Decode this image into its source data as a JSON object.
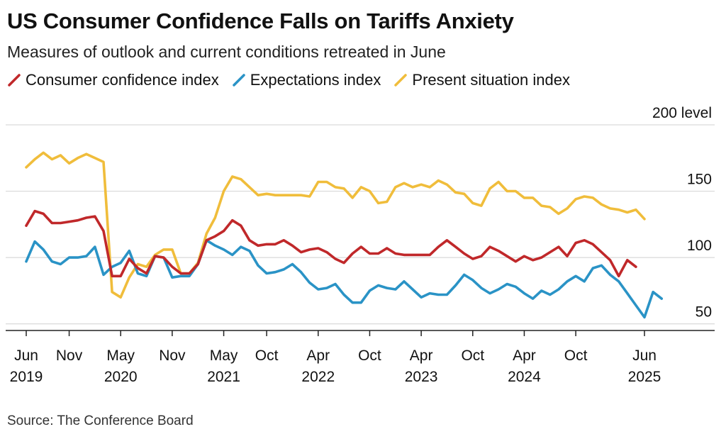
{
  "title": "US Consumer Confidence Falls on Tariffs Anxiety",
  "subtitle": "Measures of outlook and current conditions retreated in June",
  "source": "Source: The Conference Board",
  "chart_data": {
    "type": "line",
    "title": "US Consumer Confidence Falls on Tariffs Anxiety",
    "subtitle": "Measures of outlook and current conditions retreated in June",
    "ylabel": "200 level",
    "ylim": [
      45,
      200
    ],
    "xlim": [
      "2019-06",
      "2025-07"
    ],
    "y_axis_position": "right",
    "grid": true,
    "legend_position": "top-left",
    "y_ticks": [
      {
        "value": 200,
        "label": "200 level"
      },
      {
        "value": 150,
        "label": "150"
      },
      {
        "value": 100,
        "label": "100"
      },
      {
        "value": 50,
        "label": "50"
      }
    ],
    "x_ticks": [
      {
        "x": "2019-06",
        "label": "Jun",
        "year": "2019"
      },
      {
        "x": "2019-11",
        "label": "Nov",
        "year": ""
      },
      {
        "x": "2020-05",
        "label": "May",
        "year": "2020"
      },
      {
        "x": "2020-11",
        "label": "Nov",
        "year": ""
      },
      {
        "x": "2021-05",
        "label": "May",
        "year": "2021"
      },
      {
        "x": "2021-10",
        "label": "Oct",
        "year": ""
      },
      {
        "x": "2022-04",
        "label": "Apr",
        "year": "2022"
      },
      {
        "x": "2022-10",
        "label": "Oct",
        "year": ""
      },
      {
        "x": "2023-04",
        "label": "Apr",
        "year": "2023"
      },
      {
        "x": "2023-10",
        "label": "Oct",
        "year": ""
      },
      {
        "x": "2024-04",
        "label": "Apr",
        "year": "2024"
      },
      {
        "x": "2024-10",
        "label": "Oct",
        "year": ""
      },
      {
        "x": "2025-06",
        "label": "Jun",
        "year": "2025"
      }
    ],
    "series": [
      {
        "name": "Consumer confidence index",
        "color": "#c0282a",
        "start": "2019-06",
        "values": [
          124,
          135,
          133,
          126,
          126,
          127,
          128,
          130,
          131,
          120,
          86,
          86,
          99,
          92,
          88,
          101,
          100,
          93,
          88,
          88,
          95,
          113,
          116,
          120,
          128,
          124,
          113,
          109,
          110,
          110,
          113,
          109,
          104,
          106,
          107,
          104,
          99,
          96,
          103,
          108,
          103,
          103,
          107,
          103,
          102,
          102,
          102,
          102,
          108,
          113,
          108,
          103,
          99,
          101,
          108,
          105,
          101,
          97,
          101,
          98,
          100,
          104,
          108,
          101,
          111,
          113,
          110,
          104,
          98,
          86,
          98,
          93
        ]
      },
      {
        "name": "Expectations index",
        "color": "#2a93c6",
        "start": "2019-06",
        "values": [
          97,
          112,
          106,
          97,
          95,
          100,
          100,
          101,
          108,
          87,
          93,
          96,
          105,
          88,
          86,
          101,
          100,
          85,
          86,
          86,
          95,
          113,
          109,
          106,
          102,
          108,
          105,
          94,
          88,
          89,
          91,
          95,
          89,
          81,
          76,
          77,
          80,
          72,
          66,
          66,
          75,
          79,
          77,
          76,
          82,
          76,
          70,
          73,
          72,
          72,
          79,
          87,
          83,
          77,
          73,
          76,
          80,
          78,
          73,
          69,
          75,
          72,
          76,
          82,
          86,
          82,
          92,
          94,
          87,
          82,
          73,
          64,
          55,
          74,
          69
        ]
      },
      {
        "name": "Present situation index",
        "color": "#f0bd3b",
        "start": "2019-06",
        "values": [
          168,
          174,
          179,
          174,
          177,
          171,
          175,
          178,
          175,
          172,
          74,
          70,
          85,
          95,
          93,
          102,
          106,
          106,
          88,
          88,
          96,
          118,
          130,
          150,
          161,
          159,
          153,
          147,
          148,
          147,
          147,
          147,
          147,
          146,
          157,
          157,
          153,
          152,
          145,
          153,
          150,
          141,
          142,
          153,
          156,
          153,
          155,
          153,
          158,
          155,
          149,
          148,
          141,
          139,
          152,
          157,
          150,
          150,
          145,
          145,
          139,
          138,
          133,
          137,
          144,
          146,
          145,
          140,
          137,
          136,
          134,
          136,
          129
        ]
      }
    ]
  }
}
